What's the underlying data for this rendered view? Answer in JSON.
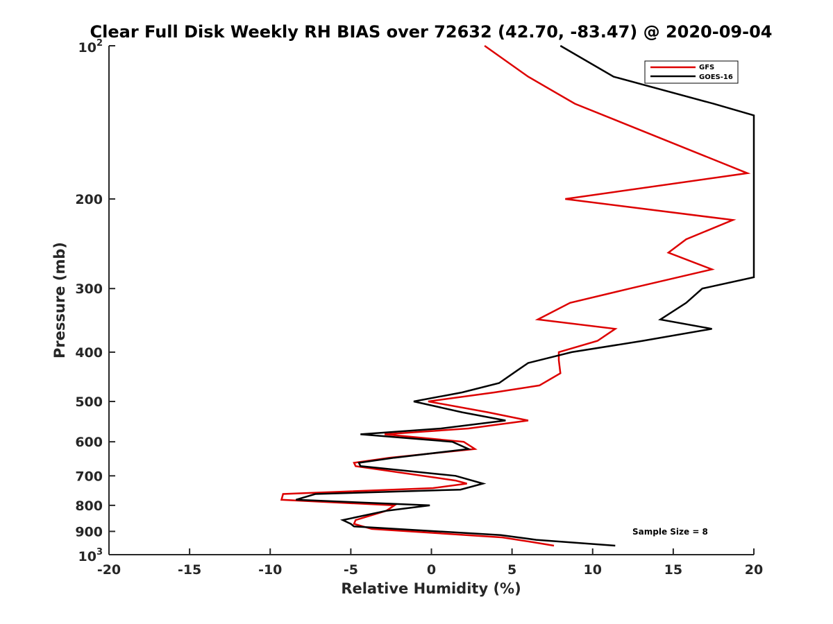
{
  "chart_data": {
    "type": "line",
    "title": "Clear Full Disk Weekly RH BIAS over 72632 (42.70, -83.47) @ 2020-09-04",
    "xlabel": "Relative Humidity (%)",
    "ylabel": "Pressure (mb)",
    "xlim": [
      -20,
      20
    ],
    "ylim": [
      100,
      1000
    ],
    "y_scale": "log",
    "y_reversed": true,
    "x_ticks": [
      "-20",
      "-15",
      "-10",
      "-5",
      "0",
      "5",
      "10",
      "15",
      "20"
    ],
    "y_ticks": [
      {
        "value": 100,
        "base": "10",
        "exp": "2"
      },
      {
        "value": 200,
        "label": "200"
      },
      {
        "value": 300,
        "label": "300"
      },
      {
        "value": 400,
        "label": "400"
      },
      {
        "value": 500,
        "label": "500"
      },
      {
        "value": 600,
        "label": "600"
      },
      {
        "value": 700,
        "label": "700"
      },
      {
        "value": 800,
        "label": "800"
      },
      {
        "value": 900,
        "label": "900"
      },
      {
        "value": 1000,
        "base": "10",
        "exp": "3"
      }
    ],
    "legend_position": "top-right",
    "grid": false,
    "annotation": "Sample Size = 8",
    "series": [
      {
        "name": "GFS",
        "color": "#dd0000",
        "points": [
          [
            3.3,
            100
          ],
          [
            6.0,
            115
          ],
          [
            8.9,
            130
          ],
          [
            19.6,
            178
          ],
          [
            8.3,
            200
          ],
          [
            18.7,
            220
          ],
          [
            15.8,
            240
          ],
          [
            14.7,
            255
          ],
          [
            17.4,
            275
          ],
          [
            12.3,
            300
          ],
          [
            8.6,
            320
          ],
          [
            6.6,
            345
          ],
          [
            11.4,
            360
          ],
          [
            10.3,
            380
          ],
          [
            7.9,
            400
          ],
          [
            7.9,
            415
          ],
          [
            8.0,
            440
          ],
          [
            6.7,
            465
          ],
          [
            3.9,
            480
          ],
          [
            -0.2,
            500
          ],
          [
            3.5,
            525
          ],
          [
            6.0,
            545
          ],
          [
            2.3,
            565
          ],
          [
            -2.9,
            580
          ],
          [
            2.0,
            600
          ],
          [
            2.7,
            620
          ],
          [
            -2.6,
            645
          ],
          [
            -4.8,
            660
          ],
          [
            -4.7,
            670
          ],
          [
            1.5,
            715
          ],
          [
            2.2,
            725
          ],
          [
            0.1,
            740
          ],
          [
            -9.2,
            760
          ],
          [
            -9.3,
            780
          ],
          [
            -2.3,
            800
          ],
          [
            -2.8,
            820
          ],
          [
            -4.7,
            855
          ],
          [
            -4.8,
            870
          ],
          [
            -3.7,
            890
          ],
          [
            4.4,
            925
          ],
          [
            6.3,
            945
          ],
          [
            7.6,
            960
          ]
        ]
      },
      {
        "name": "GOES-16",
        "color": "#000000",
        "points": [
          [
            8.0,
            100
          ],
          [
            11.3,
            115
          ],
          [
            17.5,
            130
          ],
          [
            20.0,
            137
          ],
          [
            20.0,
            285
          ],
          [
            16.8,
            300
          ],
          [
            15.8,
            320
          ],
          [
            14.2,
            345
          ],
          [
            17.4,
            360
          ],
          [
            13.1,
            380
          ],
          [
            8.7,
            400
          ],
          [
            6.0,
            420
          ],
          [
            5.3,
            435
          ],
          [
            4.2,
            460
          ],
          [
            1.9,
            480
          ],
          [
            -1.1,
            500
          ],
          [
            1.9,
            525
          ],
          [
            4.6,
            545
          ],
          [
            0.6,
            565
          ],
          [
            -4.4,
            580
          ],
          [
            1.3,
            600
          ],
          [
            2.3,
            620
          ],
          [
            -2.3,
            645
          ],
          [
            -4.5,
            660
          ],
          [
            -4.4,
            670
          ],
          [
            1.5,
            700
          ],
          [
            3.2,
            725
          ],
          [
            1.8,
            745
          ],
          [
            -7.2,
            760
          ],
          [
            -8.4,
            780
          ],
          [
            -0.1,
            800
          ],
          [
            -2.8,
            820
          ],
          [
            -5.5,
            855
          ],
          [
            -5.0,
            870
          ],
          [
            -4.8,
            880
          ],
          [
            4.3,
            915
          ],
          [
            6.5,
            935
          ],
          [
            11.4,
            960
          ]
        ]
      }
    ]
  }
}
